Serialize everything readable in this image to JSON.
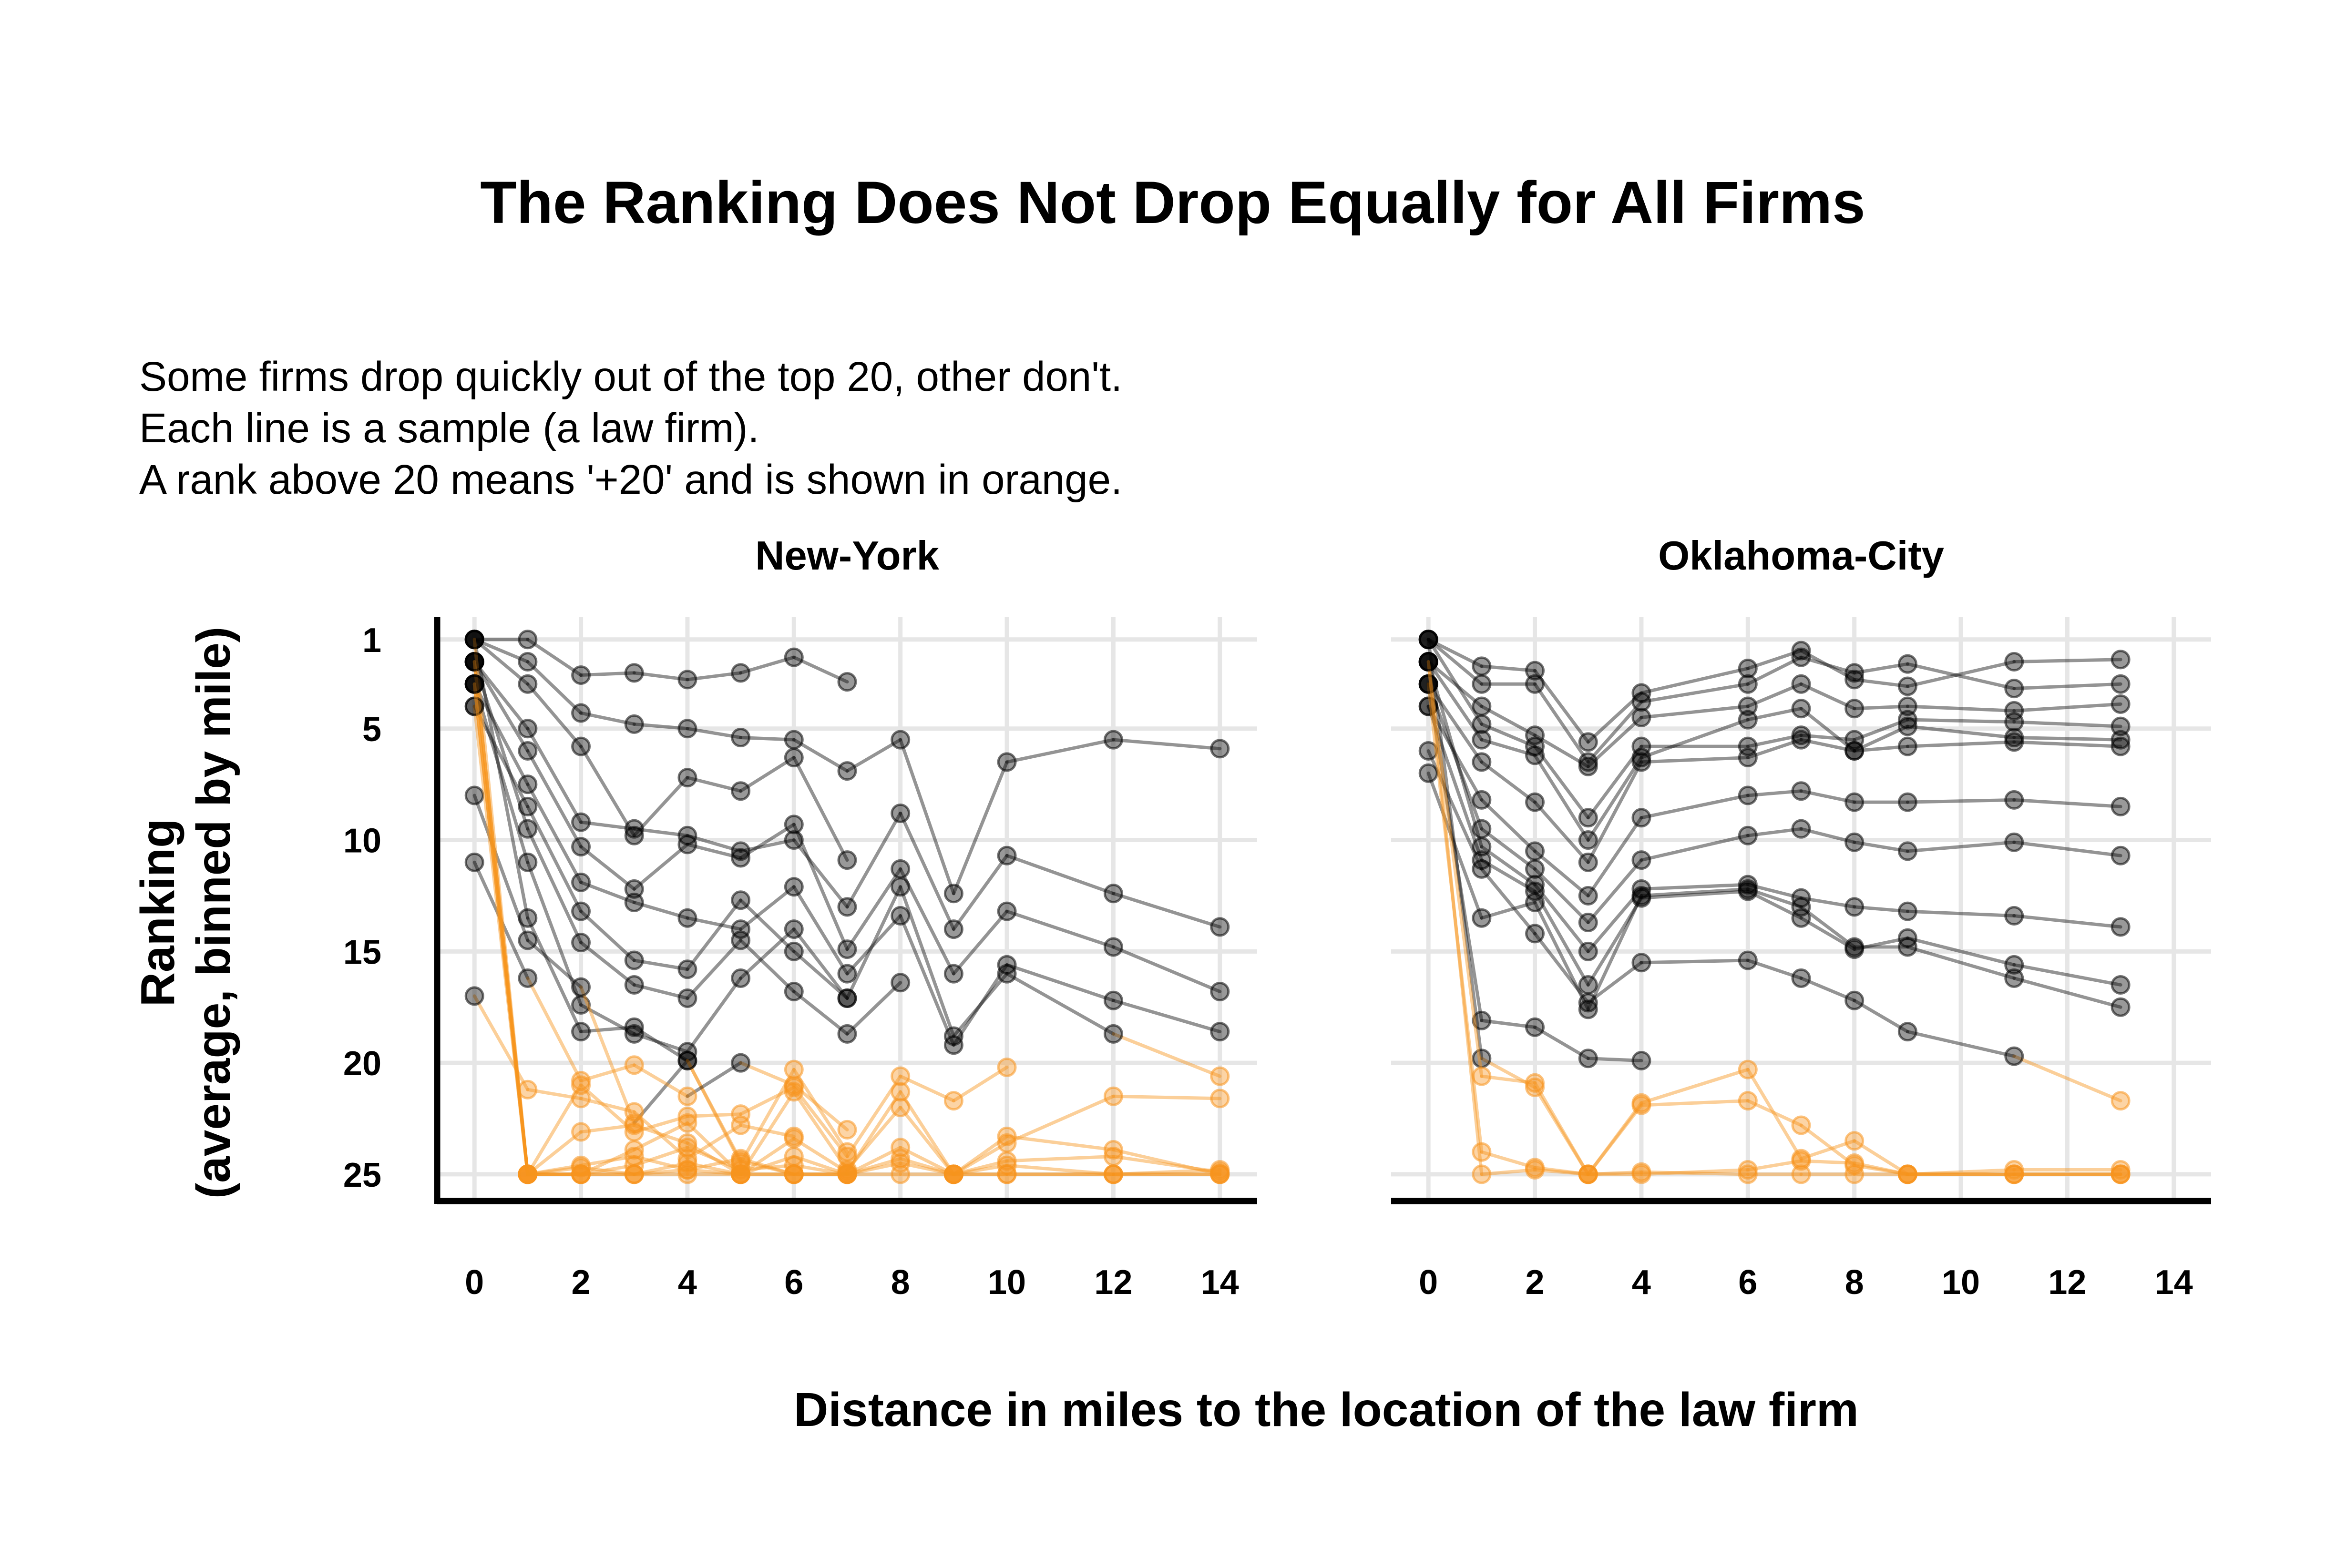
{
  "chart_data": {
    "type": "line",
    "title": "The Ranking Does Not Drop Equally for All Firms",
    "subtitle": [
      "Some firms drop quickly out of the top 20, other don't.",
      "Each line is a sample (a law firm).",
      "A rank above 20 means '+20' and is shown in orange."
    ],
    "xlabel": "Distance in miles to the location of the law firm",
    "ylabel": [
      "Ranking",
      "(average, binned by mile)"
    ],
    "xlim": [
      -0.7,
      14.7
    ],
    "ylim": [
      26.2,
      0
    ],
    "xticks": [
      0,
      2,
      4,
      6,
      8,
      10,
      12,
      14
    ],
    "yticks": [
      1,
      5,
      10,
      15,
      20,
      25
    ],
    "y_reversed": true,
    "grid": true,
    "colors": {
      "top20": "#000000",
      "above20": "#F7941D",
      "grid": "#e6e6e6"
    },
    "color_rule": "ranks above 20 are drawn in orange, others in black",
    "panels": [
      {
        "name": "New-York",
        "series": [
          {
            "x": [
              0,
              1,
              2,
              3,
              4,
              5,
              6,
              7
            ],
            "y": [
              1,
              1,
              2.6,
              2.5,
              2.8,
              2.5,
              1.8,
              2.9
            ]
          },
          {
            "x": [
              0,
              1,
              2,
              3,
              4,
              5,
              6,
              7,
              8,
              9,
              10,
              12,
              14
            ],
            "y": [
              1,
              2,
              4.3,
              4.8,
              5,
              5.4,
              5.5,
              6.9,
              5.5,
              12.4,
              6.5,
              5.5,
              5.9
            ]
          },
          {
            "x": [
              0,
              1,
              2,
              3,
              4,
              5,
              6,
              7
            ],
            "y": [
              1,
              3,
              5.8,
              9.8,
              7.2,
              7.8,
              6.3,
              10.9
            ]
          },
          {
            "x": [
              0,
              1,
              2,
              3,
              4,
              5,
              6,
              7,
              8,
              9,
              10,
              12,
              14
            ],
            "y": [
              2,
              5,
              9.2,
              9.5,
              9.8,
              10.5,
              10,
              13,
              8.8,
              14,
              10.7,
              12.4,
              13.9
            ]
          },
          {
            "x": [
              0,
              1,
              2,
              3,
              4,
              5,
              6,
              7,
              8,
              9,
              10,
              12,
              14
            ],
            "y": [
              2,
              6,
              10.3,
              12.2,
              10.2,
              10.8,
              9.3,
              14.9,
              11.3,
              16,
              13.2,
              14.8,
              16.8
            ]
          },
          {
            "x": [
              0,
              1,
              2,
              3,
              4,
              5,
              6,
              7,
              8,
              9,
              10,
              12,
              14
            ],
            "y": [
              3,
              7.5,
              11.9,
              12.8,
              13.5,
              14,
              12.1,
              16,
              13.4,
              19.2,
              15.6,
              17.2,
              18.6
            ]
          },
          {
            "x": [
              0,
              1,
              2,
              3,
              4,
              5,
              6,
              7,
              8,
              9,
              10,
              12,
              14
            ],
            "y": [
              4,
              8.5,
              13.2,
              15.4,
              15.8,
              12.7,
              15,
              17.1,
              12.1,
              18.8,
              16,
              18.7,
              20.6
            ]
          },
          {
            "x": [
              0,
              1,
              2,
              3,
              4,
              5,
              6,
              7,
              8
            ],
            "y": [
              2,
              9.5,
              14.6,
              16.5,
              17.1,
              14.5,
              16.8,
              18.7,
              16.4
            ]
          },
          {
            "x": [
              0,
              1,
              2,
              3,
              4,
              5,
              6,
              7
            ],
            "y": [
              3,
              11,
              17.4,
              18.7,
              19.5,
              16.2,
              14,
              17.1
            ]
          },
          {
            "x": [
              0,
              1,
              2,
              3,
              4,
              5,
              6,
              7
            ],
            "y": [
              1,
              13.5,
              18.6,
              18.4,
              19.9,
              24.5,
              20.3,
              24
            ]
          },
          {
            "x": [
              0,
              1,
              2,
              3,
              4,
              5,
              6
            ],
            "y": [
              8,
              14.5,
              16.6,
              22.7,
              19.9,
              24.4,
              25
            ]
          },
          {
            "x": [
              0,
              1,
              2,
              3,
              4,
              5,
              6,
              7
            ],
            "y": [
              11,
              16.2,
              20.8,
              20.1,
              21.5,
              20,
              21,
              23
            ]
          },
          {
            "x": [
              0,
              1,
              2,
              3,
              4,
              5,
              6
            ],
            "y": [
              17,
              21.2,
              21.6,
              22.2,
              24.3,
              22.8,
              23.3
            ]
          },
          {
            "x": [
              0,
              1,
              2,
              3,
              4,
              5,
              6,
              7
            ],
            "y": [
              2,
              25,
              25,
              24.6,
              23.8,
              24.8,
              24.6,
              25
            ]
          },
          {
            "x": [
              0,
              1,
              2,
              3,
              4,
              5,
              6,
              7,
              8,
              9,
              10,
              12,
              14
            ],
            "y": [
              2,
              25,
              25,
              25,
              25,
              25,
              25,
              25,
              25,
              25,
              25,
              25,
              25
            ]
          },
          {
            "x": [
              0,
              1,
              2,
              3,
              4,
              5,
              6,
              7,
              8,
              9,
              10,
              12,
              14
            ],
            "y": [
              1,
              25,
              24.7,
              25,
              24.5,
              25,
              24.2,
              25,
              24.5,
              25,
              25,
              25,
              25
            ]
          },
          {
            "x": [
              0,
              1,
              2,
              3,
              4,
              5,
              6,
              7,
              8,
              9,
              10,
              12,
              14
            ],
            "y": [
              3,
              25,
              25,
              25,
              24.8,
              25,
              25,
              25,
              24.3,
              25,
              24.6,
              25,
              24.8
            ]
          },
          {
            "x": [
              0,
              1,
              2,
              3,
              4,
              5,
              6,
              7,
              8,
              9,
              10
            ],
            "y": [
              2,
              25,
              21,
              23.1,
              22.4,
              22.3,
              21.1,
              24.2,
              20.6,
              21.7,
              20.2
            ]
          },
          {
            "x": [
              0,
              1,
              2,
              3,
              4,
              5,
              6,
              7,
              8,
              9,
              10,
              12,
              14
            ],
            "y": [
              3,
              25,
              23.1,
              22.8,
              23.6,
              25,
              23.4,
              24.9,
              21.3,
              25,
              23.3,
              23.9,
              25
            ]
          },
          {
            "x": [
              0,
              1,
              2,
              3,
              4,
              5,
              6,
              7,
              8,
              9,
              10,
              12,
              14
            ],
            "y": [
              4,
              25,
              24.6,
              24.2,
              24.8,
              24.3,
              25,
              25,
              23.8,
              25,
              23.6,
              21.5,
              21.6
            ]
          },
          {
            "x": [
              0,
              1,
              2,
              3,
              4,
              5,
              6,
              7,
              8,
              9,
              10,
              12,
              14
            ],
            "y": [
              3,
              25,
              25,
              23.9,
              22.7,
              25,
              21.3,
              24.8,
              22,
              25,
              24.4,
              24.2,
              24.9
            ]
          }
        ]
      },
      {
        "name": "Oklahoma-City",
        "series": [
          {
            "x": [
              0,
              1,
              2,
              3,
              4,
              6,
              7,
              8,
              9,
              11,
              13
            ],
            "y": [
              1,
              2.2,
              2.4,
              5.6,
              3.4,
              2.3,
              1.5,
              2.8,
              3.1,
              2,
              1.9
            ]
          },
          {
            "x": [
              0,
              1,
              2,
              3,
              4,
              6,
              7,
              8,
              9,
              11,
              13
            ],
            "y": [
              1,
              3,
              3,
              6.5,
              3.8,
              3,
              1.8,
              2.5,
              2.1,
              3.2,
              3
            ]
          },
          {
            "x": [
              0,
              1,
              2,
              3,
              4,
              6,
              7,
              8,
              9,
              11,
              13
            ],
            "y": [
              2,
              4,
              5.3,
              6.7,
              4.5,
              4,
              3,
              4.1,
              4,
              4.2,
              3.9
            ]
          },
          {
            "x": [
              0,
              1,
              2,
              3,
              4,
              6,
              7,
              8,
              9,
              11,
              13
            ],
            "y": [
              1,
              4.8,
              5.8,
              9,
              5.8,
              5.8,
              5.3,
              5.5,
              4.6,
              4.7,
              4.9
            ]
          },
          {
            "x": [
              0,
              1,
              2,
              3,
              4,
              6,
              7,
              8,
              9,
              11,
              13
            ],
            "y": [
              2,
              5.5,
              6.2,
              10,
              6.3,
              4.6,
              4.1,
              6,
              4.9,
              5.4,
              5.5
            ]
          },
          {
            "x": [
              0,
              1,
              2,
              3,
              4,
              6,
              7,
              8,
              9,
              11,
              13
            ],
            "y": [
              3,
              6.5,
              8.3,
              11,
              6.5,
              6.3,
              5.5,
              6,
              5.8,
              5.6,
              5.8
            ]
          },
          {
            "x": [
              0,
              1,
              2,
              3,
              4,
              6,
              7,
              8,
              9,
              11,
              13
            ],
            "y": [
              4,
              8.2,
              10.5,
              12.5,
              9,
              8,
              7.8,
              8.3,
              8.3,
              8.2,
              8.5
            ]
          },
          {
            "x": [
              0,
              1,
              2,
              3,
              4,
              6,
              7,
              8,
              9,
              11,
              13
            ],
            "y": [
              3,
              9.5,
              11.3,
              13.7,
              10.9,
              9.8,
              9.5,
              10.1,
              10.5,
              10.1,
              10.7
            ]
          },
          {
            "x": [
              0,
              1,
              2,
              3,
              4,
              6,
              7,
              8,
              9,
              11,
              13
            ],
            "y": [
              2,
              10.3,
              12,
              15,
              12.2,
              12,
              12.6,
              13,
              13.2,
              13.4,
              13.9
            ]
          },
          {
            "x": [
              0,
              1,
              2,
              3,
              4,
              6,
              7,
              8,
              9,
              11,
              13
            ],
            "y": [
              4,
              10.9,
              12.3,
              16.5,
              12.6,
              12.3,
              13.5,
              14.9,
              14.4,
              15.6,
              16.5
            ]
          },
          {
            "x": [
              0,
              1,
              2,
              3,
              4,
              6,
              7,
              8,
              9,
              11,
              13
            ],
            "y": [
              6,
              11.3,
              14.2,
              17.3,
              15.5,
              15.4,
              16.2,
              17.2,
              18.6,
              19.7,
              21.7
            ]
          },
          {
            "x": [
              0,
              1,
              2,
              3,
              4,
              6,
              7,
              8,
              9,
              11,
              13
            ],
            "y": [
              7,
              13.5,
              12.8,
              17.6,
              12.5,
              12.2,
              13,
              14.8,
              14.8,
              16.2,
              17.5
            ]
          },
          {
            "x": [
              0,
              1,
              2,
              3,
              4
            ],
            "y": [
              3,
              18.1,
              18.4,
              19.8,
              19.9
            ]
          },
          {
            "x": [
              0,
              1,
              2,
              3,
              4,
              6,
              7,
              8,
              9,
              11,
              13
            ],
            "y": [
              1,
              19.8,
              21.1,
              25,
              21.9,
              21.7,
              22.8,
              24.6,
              25,
              25,
              25
            ]
          },
          {
            "x": [
              0,
              1,
              2,
              3,
              4,
              6,
              7,
              8,
              9,
              11,
              13
            ],
            "y": [
              2,
              20.6,
              20.9,
              25,
              21.8,
              20.3,
              24.3,
              23.5,
              25,
              24.8,
              24.8
            ]
          },
          {
            "x": [
              0,
              1,
              2,
              3,
              4,
              6,
              7,
              8,
              9,
              11,
              13
            ],
            "y": [
              3,
              24,
              24.7,
              25,
              25,
              24.8,
              24.4,
              24.5,
              25,
              25,
              25
            ]
          },
          {
            "x": [
              0,
              1,
              2,
              3,
              4,
              6,
              7,
              8,
              9,
              11,
              13
            ],
            "y": [
              2,
              25,
              24.8,
              25,
              24.9,
              25,
              25,
              25,
              25,
              25,
              25
            ]
          }
        ]
      }
    ]
  }
}
